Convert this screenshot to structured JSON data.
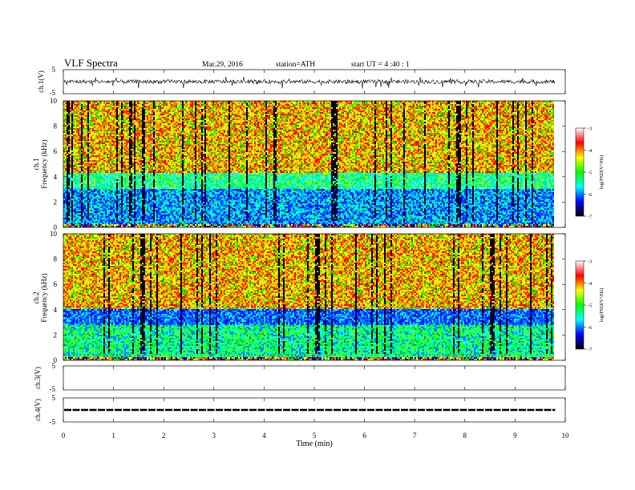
{
  "header": {
    "title": "VLF  Spectra",
    "date": "Mar.29, 2016",
    "station": "station=ATH",
    "start": "start  UT  =   4  :40 : 1"
  },
  "chart_data": [
    {
      "id": "ch1-waveform",
      "type": "line",
      "ylabel": "ch.1(V)",
      "ylim": [
        -5,
        5
      ],
      "ytick_labels": [
        "5",
        "-5"
      ],
      "xlim": [
        0,
        10
      ],
      "data_extent_min": 9.8,
      "baseline": 0,
      "amplitude_range": [
        -3,
        2
      ],
      "description_kind": "dense noisy signal"
    },
    {
      "id": "ch1-spectrogram",
      "type": "heatmap",
      "ylabel": "ch.1\nFrequency  (kHz)",
      "ylabel_line1": "ch.1",
      "ylabel_line2": "Frequency  (kHz)",
      "ylim": [
        0,
        10
      ],
      "yticks": [
        "0",
        "2",
        "4",
        "6",
        "8",
        "10"
      ],
      "xlim": [
        0,
        10
      ],
      "data_extent_min": 9.8,
      "colorbar": {
        "label": "log(PSD(V²/Hz)",
        "range": [
          -7,
          -3
        ],
        "ticks": [
          "-3",
          "-4",
          "-5",
          "-6",
          "-7"
        ],
        "colors": [
          "#ffffff",
          "#ff0000",
          "#ffff00",
          "#00ff00",
          "#00ffff",
          "#0000ff",
          "#000000"
        ]
      },
      "bands": [
        {
          "from_khz": 4.3,
          "to_khz": 10,
          "dominant": "red/yellow"
        },
        {
          "from_khz": 3.0,
          "to_khz": 4.3,
          "dominant": "green/cyan"
        },
        {
          "from_khz": 0.3,
          "to_khz": 3.0,
          "dominant": "blue/cyan"
        }
      ]
    },
    {
      "id": "ch2-spectrogram",
      "type": "heatmap",
      "ylabel_line1": "ch.2",
      "ylabel_line2": "Frequency  (kHz)",
      "ylim": [
        0,
        10
      ],
      "yticks": [
        "0",
        "2",
        "4",
        "6",
        "8",
        "10"
      ],
      "xlim": [
        0,
        10
      ],
      "data_extent_min": 9.8,
      "colorbar": {
        "label": "log(PSD(V²/Hz)",
        "range": [
          -7,
          -3
        ],
        "ticks": [
          "-3",
          "-4",
          "-5",
          "-6",
          "-7"
        ],
        "colors": [
          "#ffffff",
          "#ff0000",
          "#ffff00",
          "#00ff00",
          "#00ffff",
          "#0000ff",
          "#000000"
        ]
      },
      "bands": [
        {
          "from_khz": 4.0,
          "to_khz": 10,
          "dominant": "red/yellow"
        },
        {
          "from_khz": 2.8,
          "to_khz": 4.0,
          "dominant": "blue"
        },
        {
          "from_khz": 0.2,
          "to_khz": 2.8,
          "dominant": "cyan/green"
        }
      ]
    },
    {
      "id": "ch3-waveform",
      "type": "line",
      "ylabel": "ch.3(V)",
      "ylim": [
        -5,
        5
      ],
      "ytick_labels": [
        "5",
        "-5"
      ],
      "xlim": [
        0,
        10
      ],
      "values_note": "flat"
    },
    {
      "id": "ch4-waveform",
      "type": "line",
      "ylabel": "ch.4(V)",
      "ylim": [
        -5,
        5
      ],
      "ytick_labels": [
        "5",
        "-5"
      ],
      "xlim": [
        0,
        10
      ],
      "baseline": 0,
      "data_extent_min": 9.8
    }
  ],
  "xaxis": {
    "label": "Time  (min)",
    "ticks": [
      "0",
      "1",
      "2",
      "3",
      "4",
      "5",
      "6",
      "7",
      "8",
      "9",
      "10"
    ]
  }
}
